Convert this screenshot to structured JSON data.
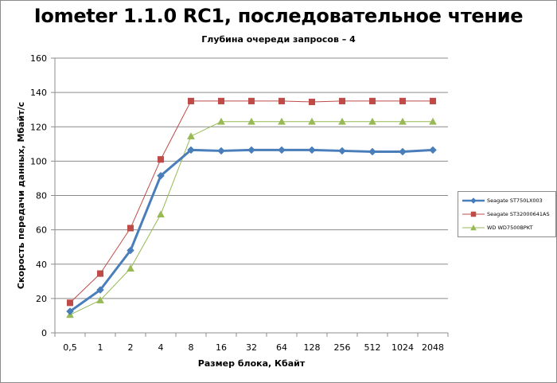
{
  "chart_data": {
    "type": "line",
    "title": "Iometer 1.1.0 RC1, последовательное чтение",
    "subtitle": "Глубина очереди запросов – 4",
    "xlabel": "Размер блока, Кбайт",
    "ylabel": "Скорость передачи данных, Мбайт/с",
    "categories": [
      "0,5",
      "1",
      "2",
      "4",
      "8",
      "16",
      "32",
      "64",
      "128",
      "256",
      "512",
      "1024",
      "2048"
    ],
    "ylim": [
      0,
      160
    ],
    "yticks": [
      "0",
      "20",
      "40",
      "60",
      "80",
      "100",
      "120",
      "140",
      "160"
    ],
    "grid": true,
    "legend_position": "right",
    "series": [
      {
        "name": "Seagate ST750LX003",
        "color": "#4a7ebb",
        "marker": "diamond",
        "values": [
          12.5,
          25,
          48,
          91.5,
          106.5,
          106,
          106.5,
          106.5,
          106.5,
          106,
          105.5,
          105.5,
          106.5
        ]
      },
      {
        "name": "Seagate ST32000641AS",
        "color": "#be4b48",
        "marker": "square",
        "values": [
          17.5,
          34.5,
          61,
          101,
          135,
          135,
          135,
          135,
          134.5,
          135,
          135,
          135,
          135
        ]
      },
      {
        "name": "WD WD7500BPKT",
        "color": "#98b954",
        "marker": "triangle",
        "values": [
          10.5,
          19,
          37.5,
          69,
          114.5,
          123,
          123,
          123,
          123,
          123,
          123,
          123,
          123
        ]
      }
    ]
  }
}
